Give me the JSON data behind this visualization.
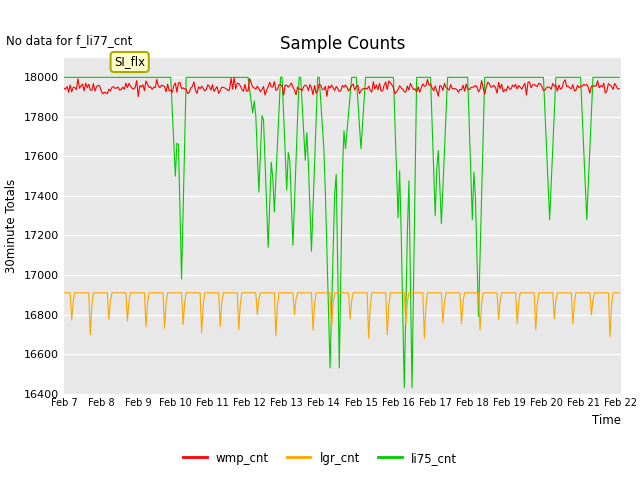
{
  "title": "Sample Counts",
  "no_data_label": "No data for f_li77_cnt",
  "ylabel": "30minute Totals",
  "xlabel": "Time",
  "ylim": [
    16400,
    18100
  ],
  "xlim": [
    0,
    360
  ],
  "x_tick_labels": [
    "Feb 7",
    "Feb 8",
    "Feb 9",
    "Feb 10",
    "Feb 11",
    "Feb 12",
    "Feb 13",
    "Feb 14",
    "Feb 15",
    "Feb 16",
    "Feb 17",
    "Feb 18",
    "Feb 19",
    "Feb 20",
    "Feb 21",
    "Feb 22"
  ],
  "bg_color": "#e8e8e8",
  "fig_color": "#ffffff",
  "wmp_color": "#ff0000",
  "lgr_color": "#ffa500",
  "li75_color": "#00cc00",
  "wmp_base": 17950,
  "lgr_base": 16910,
  "li75_base": 18000,
  "annotation_text": "SI_flx",
  "legend_entries": [
    "wmp_cnt",
    "lgr_cnt",
    "li75_cnt"
  ],
  "y_ticks": [
    16400,
    16600,
    16800,
    17000,
    17200,
    17400,
    17600,
    17800,
    18000
  ]
}
